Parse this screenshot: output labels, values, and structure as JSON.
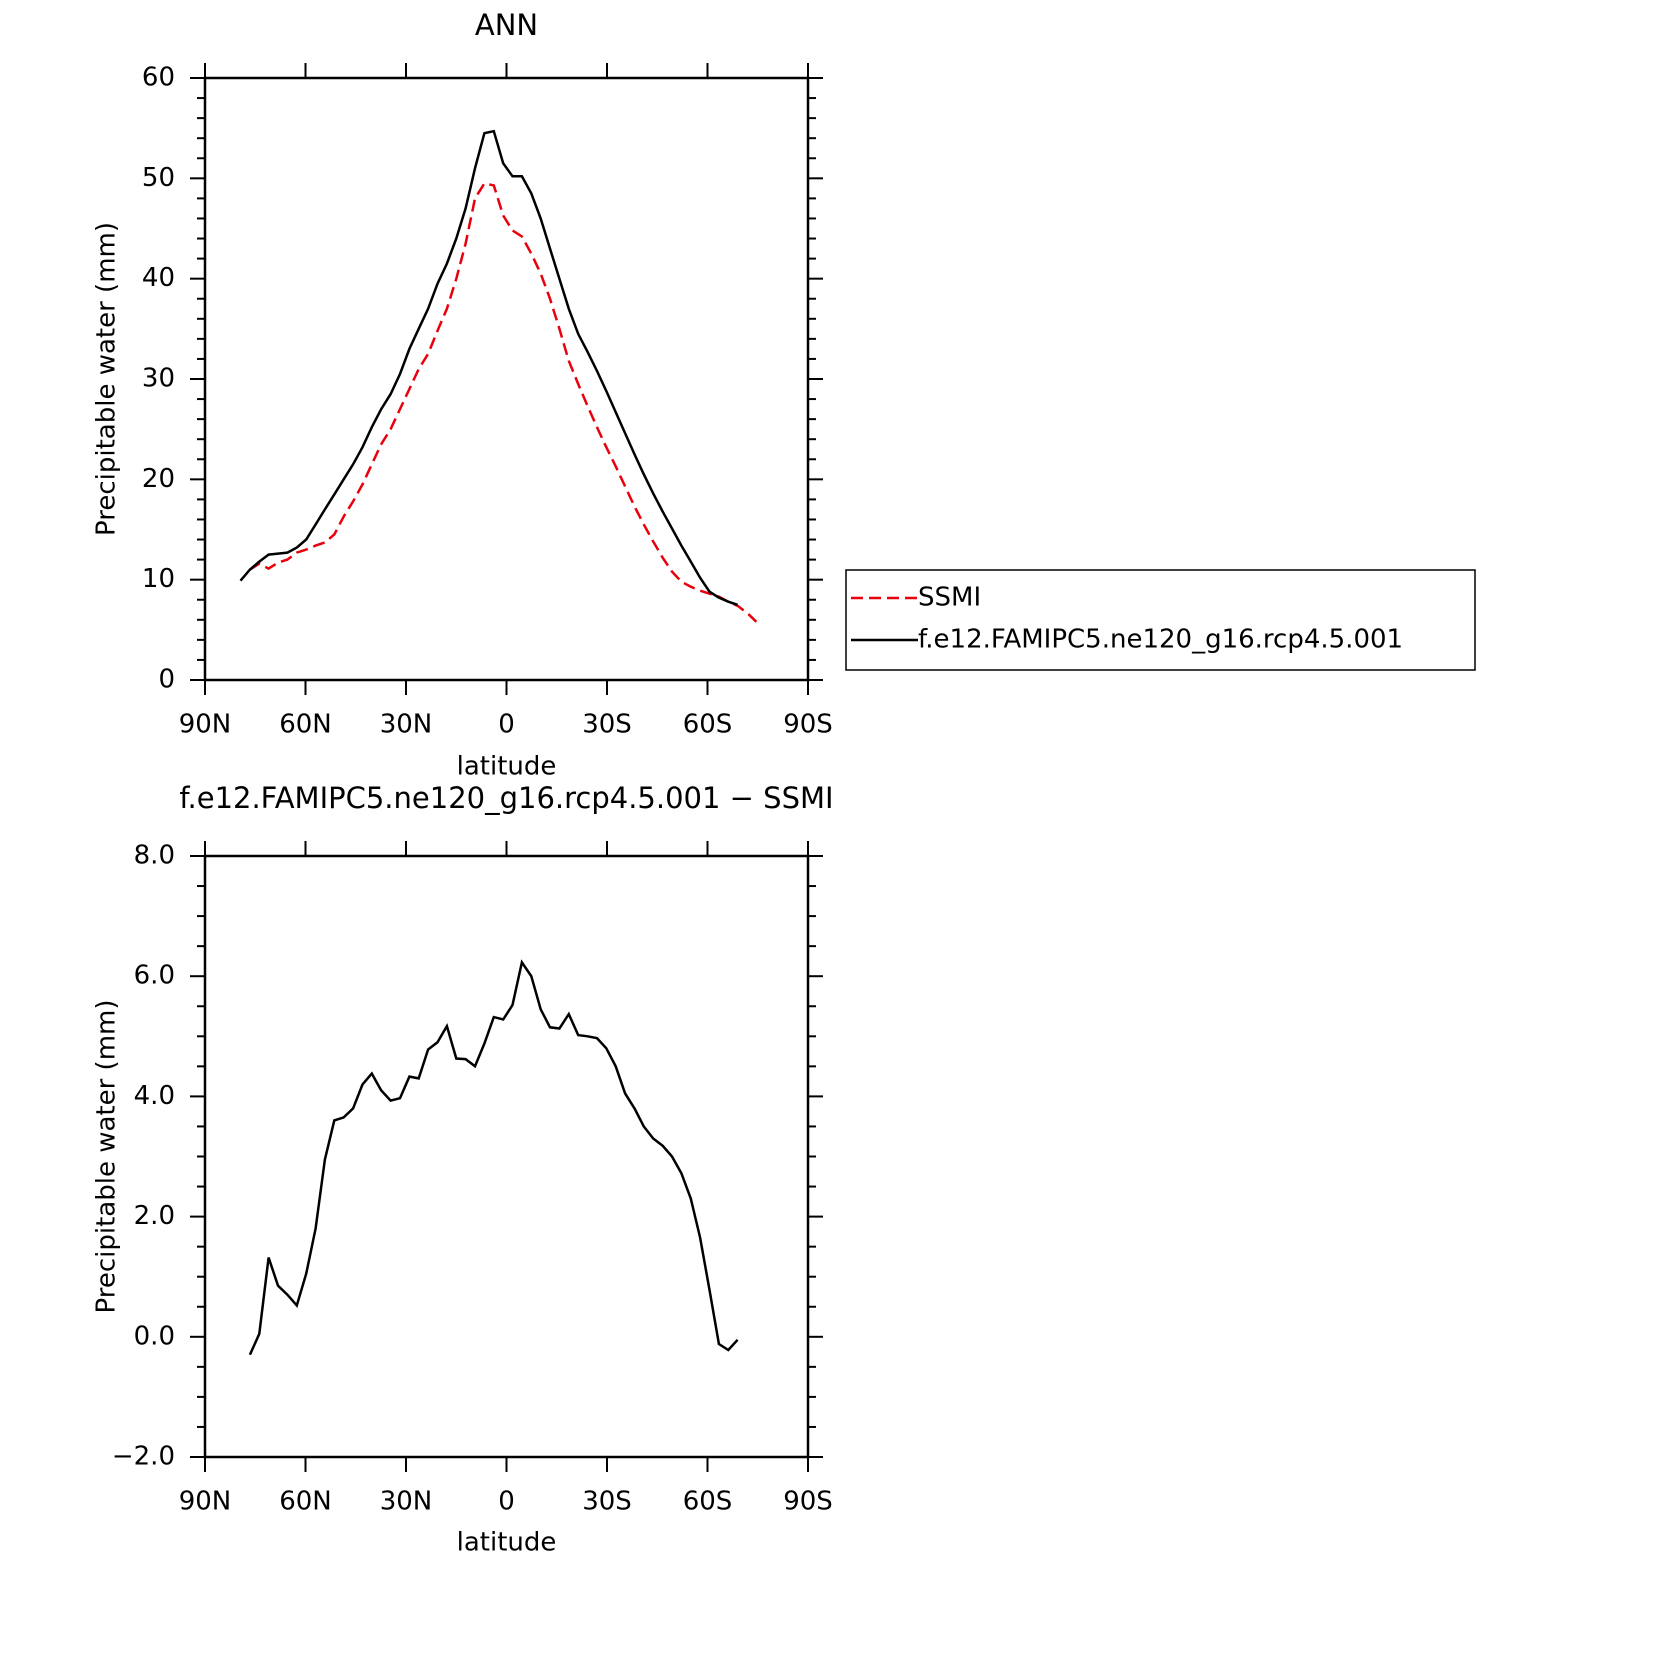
{
  "chart_data": [
    {
      "type": "line",
      "title": "ANN",
      "xlabel": "latitude",
      "ylabel": "Precipitable water (mm)",
      "x": [
        79.4,
        76.6,
        73.8,
        71.0,
        68.2,
        65.4,
        62.6,
        59.8,
        57.0,
        54.2,
        51.4,
        48.6,
        45.8,
        43.0,
        40.2,
        37.4,
        34.6,
        31.8,
        29.0,
        26.2,
        23.4,
        20.6,
        17.8,
        15.0,
        12.2,
        9.4,
        6.6,
        3.8,
        1.0,
        -1.8,
        -4.6,
        -7.4,
        -10.2,
        -13.0,
        -15.8,
        -18.6,
        -21.4,
        -24.2,
        -27.0,
        -29.8,
        -32.6,
        -35.4,
        -38.2,
        -41.0,
        -43.8,
        -46.6,
        -49.4,
        -52.2,
        -55.0,
        -57.8,
        -60.6,
        -63.4,
        -66.2,
        -69.0,
        -71.8,
        -74.6
      ],
      "series": [
        {
          "name": "SSMI",
          "color": "#e8000b",
          "dash": true,
          "values": [
            null,
            11.0,
            11.6,
            11.1,
            11.7,
            12.0,
            12.7,
            13.0,
            13.4,
            13.7,
            14.5,
            16.3,
            17.8,
            19.5,
            21.5,
            23.5,
            25.0,
            27.0,
            29.0,
            31.0,
            32.5,
            34.8,
            37.0,
            40.0,
            43.5,
            48.0,
            49.5,
            49.3,
            46.3,
            44.8,
            44.2,
            42.5,
            40.5,
            38.0,
            35.0,
            31.8,
            29.5,
            27.3,
            25.2,
            23.2,
            21.3,
            19.3,
            17.3,
            15.5,
            13.8,
            12.2,
            10.8,
            9.8,
            9.3,
            8.9,
            8.6,
            8.3,
            7.8,
            7.4,
            6.7,
            5.8
          ]
        },
        {
          "name": "f.e12.FAMIPC5.ne120_g16.rcp4.5.001",
          "color": "#000000",
          "dash": false,
          "values": [
            9.9,
            11.0,
            11.8,
            12.5,
            12.6,
            12.7,
            13.2,
            14.0,
            15.5,
            17.0,
            18.5,
            20.0,
            21.5,
            23.2,
            25.2,
            27.0,
            28.5,
            30.5,
            33.0,
            35.0,
            37.0,
            39.5,
            41.5,
            44.0,
            47.0,
            51.0,
            54.5,
            54.7,
            51.5,
            50.2,
            50.2,
            48.5,
            46.0,
            43.0,
            40.0,
            37.0,
            34.5,
            32.7,
            30.8,
            28.8,
            26.7,
            24.6,
            22.5,
            20.5,
            18.6,
            16.8,
            15.1,
            13.4,
            11.8,
            10.2,
            8.8,
            8.2,
            7.8,
            7.5,
            null,
            null
          ]
        }
      ],
      "xlim": [
        90,
        -90
      ],
      "xticks": [
        {
          "value": 90,
          "label": "90N"
        },
        {
          "value": 60,
          "label": "60N"
        },
        {
          "value": 30,
          "label": "30N"
        },
        0,
        {
          "value": -30,
          "label": "30S"
        },
        {
          "value": -60,
          "label": "60S"
        },
        {
          "value": -90,
          "label": "90S"
        }
      ],
      "ylim": [
        0,
        60
      ],
      "yticks": [
        0,
        10,
        20,
        30,
        40,
        50,
        60
      ],
      "yminorticks": [
        2,
        4,
        6,
        8,
        12,
        14,
        16,
        18,
        22,
        24,
        26,
        28,
        32,
        34,
        36,
        38,
        42,
        44,
        46,
        48,
        52,
        54,
        56,
        58
      ],
      "legend": "right"
    },
    {
      "type": "line",
      "title": "f.e12.FAMIPC5.ne120_g16.rcp4.5.001 − SSMI",
      "xlabel": "latitude",
      "ylabel": "Precipitable water (mm)",
      "x": [
        76.6,
        73.8,
        71.0,
        68.2,
        65.4,
        62.6,
        59.8,
        57.0,
        54.2,
        51.4,
        48.6,
        45.8,
        43.0,
        40.2,
        37.4,
        34.6,
        31.8,
        29.0,
        26.2,
        23.4,
        20.6,
        17.8,
        15.0,
        12.2,
        9.4,
        6.6,
        3.8,
        1.0,
        -1.8,
        -4.6,
        -7.4,
        -10.2,
        -13.0,
        -15.8,
        -18.6,
        -21.4,
        -24.2,
        -27.0,
        -29.8,
        -32.6,
        -35.4,
        -38.2,
        -41.0,
        -43.8,
        -46.6,
        -49.4,
        -52.2,
        -55.0,
        -57.8,
        -60.6,
        -63.4,
        -66.2,
        -69.0
      ],
      "series": [
        {
          "color": "#000000",
          "dash": false,
          "values": [
            -0.3,
            0.05,
            1.32,
            0.85,
            0.7,
            0.52,
            1.05,
            1.8,
            2.95,
            3.6,
            3.65,
            3.8,
            4.2,
            4.38,
            4.1,
            3.93,
            3.97,
            4.33,
            4.3,
            4.78,
            4.9,
            5.17,
            4.63,
            4.62,
            4.5,
            4.88,
            5.32,
            5.28,
            5.52,
            6.23,
            6.0,
            5.45,
            5.15,
            5.13,
            5.37,
            5.02,
            5.0,
            4.97,
            4.8,
            4.5,
            4.05,
            3.8,
            3.5,
            3.3,
            3.18,
            3.0,
            2.72,
            2.3,
            1.65,
            0.78,
            -0.12,
            -0.22,
            -0.05
          ]
        }
      ],
      "xlim": [
        90,
        -90
      ],
      "xticks": [
        {
          "value": 90,
          "label": "90N"
        },
        {
          "value": 60,
          "label": "60N"
        },
        {
          "value": 30,
          "label": "30N"
        },
        0,
        {
          "value": -30,
          "label": "30S"
        },
        {
          "value": -60,
          "label": "60S"
        },
        {
          "value": -90,
          "label": "90S"
        }
      ],
      "ylim": [
        -2,
        8
      ],
      "yticks": [
        {
          "value": -2,
          "label": "−2.0"
        },
        {
          "value": 0,
          "label": "0.0"
        },
        {
          "value": 2,
          "label": "2.0"
        },
        {
          "value": 4,
          "label": "4.0"
        },
        {
          "value": 6,
          "label": "6.0"
        },
        {
          "value": 8,
          "label": "8.0"
        }
      ],
      "yminorticks": [
        -1.5,
        -1,
        -0.5,
        0.5,
        1,
        1.5,
        2.5,
        3,
        3.5,
        4.5,
        5,
        5.5,
        6.5,
        7,
        7.5
      ]
    }
  ]
}
